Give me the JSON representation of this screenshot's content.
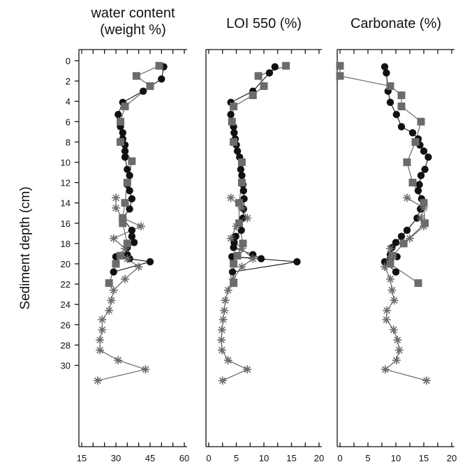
{
  "chart_data": [
    {
      "type": "line",
      "title": "water content\n(weight %)",
      "xlim": [
        15,
        60
      ],
      "xticks": [
        15,
        30,
        45,
        60
      ],
      "ylim": [
        0,
        32
      ],
      "yticks": [
        0,
        2,
        4,
        6,
        8,
        10,
        12,
        14,
        16,
        18,
        20,
        22,
        24,
        26,
        28,
        30
      ],
      "ylabel": "Sediment depth (cm)",
      "orientation": "depth-profile",
      "series": [
        {
          "marker": "circle",
          "color": "#111111",
          "x": [
            51,
            50,
            42,
            33,
            31,
            32,
            33,
            33,
            34,
            34,
            34,
            35,
            36,
            35,
            36,
            37,
            36,
            33,
            37,
            37,
            38,
            35,
            35,
            36,
            30,
            45,
            29
          ],
          "y": [
            0.6,
            1.8,
            3,
            4.1,
            5.3,
            6.5,
            7.1,
            7.7,
            8.3,
            8.9,
            9.5,
            10.7,
            11.3,
            12.2,
            12.8,
            13.6,
            14.6,
            15.5,
            16.7,
            17.3,
            17.9,
            18.4,
            19.1,
            19.5,
            19.3,
            19.8,
            20.8
          ]
        },
        {
          "marker": "square",
          "color": "#6b6b6b",
          "x": [
            49,
            39,
            45,
            34,
            32,
            32,
            37,
            35,
            34,
            33,
            33,
            35,
            32,
            30,
            27
          ],
          "y": [
            0.5,
            1.5,
            2.5,
            4.5,
            6,
            8,
            9.9,
            12,
            14,
            15.5,
            16,
            18,
            19.2,
            20,
            21.9
          ]
        },
        {
          "marker": "asterisk",
          "color": "#6b6b6b",
          "x": [
            30,
            30,
            33,
            41,
            29,
            34,
            35,
            40,
            34,
            29,
            28,
            27,
            24,
            24,
            23,
            23,
            31,
            43,
            22
          ],
          "y": [
            13.5,
            14.5,
            15.5,
            16.3,
            17.5,
            18.5,
            19.5,
            20.3,
            21.5,
            22.6,
            23.6,
            24.6,
            25.5,
            26.5,
            27.5,
            28.5,
            29.5,
            30.4,
            31.5
          ]
        }
      ]
    },
    {
      "type": "line",
      "title": "LOI 550 (%)",
      "xlim": [
        0,
        20
      ],
      "xticks": [
        0,
        5,
        10,
        15,
        20
      ],
      "ylim": [
        0,
        32
      ],
      "series": [
        {
          "marker": "circle",
          "color": "#111111",
          "x": [
            12,
            11,
            8,
            4,
            4,
            4.5,
            4.6,
            4.8,
            5,
            5.2,
            5.6,
            5.8,
            6,
            6.2,
            6.3,
            6.4,
            6.3,
            6.2,
            5.9,
            4.9,
            4.6,
            4.5,
            8,
            9.5,
            4.2,
            16,
            4.3
          ],
          "y": [
            0.6,
            1.2,
            3,
            4.1,
            5.3,
            6.5,
            7.1,
            7.7,
            8.3,
            8.9,
            9.5,
            10.7,
            11.3,
            12.2,
            12.8,
            13.6,
            14.6,
            15.5,
            16.7,
            17.3,
            17.9,
            18.4,
            19.1,
            19.5,
            19.3,
            19.8,
            20.8
          ]
        },
        {
          "marker": "square",
          "color": "#6b6b6b",
          "x": [
            14,
            9,
            10,
            8,
            4.5,
            4.2,
            4.5,
            6,
            6,
            5.5,
            5.5,
            6.2,
            5.2,
            4.5,
            4.5
          ],
          "y": [
            0.5,
            1.5,
            2.5,
            3.4,
            4.5,
            6,
            8,
            10,
            12,
            14,
            16,
            18,
            19.2,
            20,
            21.9
          ]
        },
        {
          "marker": "asterisk",
          "color": "#6b6b6b",
          "x": [
            4,
            6,
            7,
            5,
            4,
            6,
            8,
            6,
            4.4,
            3.5,
            3,
            2.8,
            2.6,
            2.4,
            2.3,
            2.4,
            3.5,
            7,
            2.5
          ],
          "y": [
            13.5,
            14.5,
            15.5,
            16.3,
            17.5,
            18.5,
            19.5,
            20.3,
            21.5,
            22.6,
            23.6,
            24.6,
            25.5,
            26.5,
            27.5,
            28.5,
            29.5,
            30.4,
            31.5
          ]
        }
      ]
    },
    {
      "type": "line",
      "title": "Carbonate (%)",
      "xlim": [
        0,
        20
      ],
      "xticks": [
        0,
        5,
        10,
        15,
        20
      ],
      "ylim": [
        0,
        32
      ],
      "series": [
        {
          "marker": "circle",
          "color": "#111111",
          "x": [
            8,
            8.3,
            8.6,
            9,
            10.1,
            11,
            13,
            14,
            14.3,
            15,
            15.8,
            15.2,
            14.5,
            14.2,
            14,
            14.6,
            14.4,
            13.8,
            12,
            11,
            10,
            9.3,
            9,
            9,
            10.2,
            8,
            10
          ],
          "y": [
            0.6,
            1.2,
            3,
            4.1,
            5.3,
            6.5,
            7.1,
            7.7,
            8.3,
            8.9,
            9.5,
            10.7,
            11.3,
            12.2,
            12.8,
            13.6,
            14.6,
            15.5,
            16.7,
            17.3,
            17.9,
            18.4,
            19.1,
            19.5,
            19.3,
            19.8,
            20.8
          ]
        },
        {
          "marker": "square",
          "color": "#6b6b6b",
          "x": [
            0,
            0,
            9,
            11,
            11,
            14.5,
            13.5,
            12,
            13,
            15,
            15.2,
            11.4,
            9.4,
            9,
            14
          ],
          "y": [
            0.5,
            1.5,
            2.5,
            3.4,
            4.5,
            6,
            8,
            10,
            12,
            14,
            16,
            18,
            19.2,
            20,
            21.9
          ]
        },
        {
          "marker": "asterisk",
          "color": "#6b6b6b",
          "x": [
            12,
            15,
            14.5,
            15,
            12.5,
            9,
            9,
            8,
            9,
            9.3,
            9.7,
            8.4,
            8.3,
            9.6,
            10.3,
            10.6,
            10.1,
            8.1,
            15.5
          ],
          "y": [
            13.5,
            14.5,
            15.5,
            16.3,
            17.5,
            18.5,
            19.5,
            20.3,
            21.5,
            22.6,
            23.6,
            24.6,
            25.5,
            26.5,
            27.5,
            28.5,
            29.5,
            30.4,
            31.5
          ]
        }
      ]
    }
  ]
}
